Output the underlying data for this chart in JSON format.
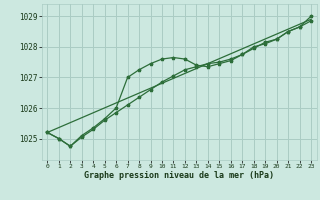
{
  "bg_color": "#cce8e0",
  "grid_color": "#aaccc4",
  "line_color": "#2d6e3a",
  "title": "Graphe pression niveau de la mer (hPa)",
  "xlim": [
    -0.5,
    23.5
  ],
  "ylim": [
    1024.3,
    1029.4
  ],
  "yticks": [
    1025,
    1026,
    1027,
    1028,
    1029
  ],
  "xticks": [
    0,
    1,
    2,
    3,
    4,
    5,
    6,
    7,
    8,
    9,
    10,
    11,
    12,
    13,
    14,
    15,
    16,
    17,
    18,
    19,
    20,
    21,
    22,
    23
  ],
  "series1_x": [
    0,
    1,
    2,
    3,
    4,
    5,
    6,
    7,
    8,
    9,
    10,
    11,
    12,
    13,
    14,
    15,
    16,
    17,
    18,
    19,
    20,
    21,
    22,
    23
  ],
  "series1_y": [
    1025.2,
    1025.0,
    1024.75,
    1025.1,
    1025.35,
    1025.65,
    1026.0,
    1027.0,
    1027.25,
    1027.45,
    1027.6,
    1027.65,
    1027.6,
    1027.4,
    1027.35,
    1027.45,
    1027.55,
    1027.75,
    1028.0,
    1028.1,
    1028.25,
    1028.5,
    1028.65,
    1029.0
  ],
  "series2_x": [
    0,
    1,
    2,
    3,
    4,
    5,
    6,
    7,
    8,
    9,
    10,
    11,
    12,
    13,
    14,
    15,
    16,
    17,
    18,
    19,
    20,
    21,
    22,
    23
  ],
  "series2_y": [
    1025.2,
    1025.0,
    1024.75,
    1025.05,
    1025.3,
    1025.6,
    1025.85,
    1026.1,
    1026.35,
    1026.6,
    1026.85,
    1027.05,
    1027.25,
    1027.35,
    1027.45,
    1027.5,
    1027.6,
    1027.75,
    1027.95,
    1028.15,
    1028.25,
    1028.5,
    1028.65,
    1028.85
  ],
  "series3_x": [
    0,
    23
  ],
  "series3_y": [
    1025.2,
    1028.9
  ],
  "marker": "*",
  "marker_size": 2.5,
  "linewidth": 0.9
}
